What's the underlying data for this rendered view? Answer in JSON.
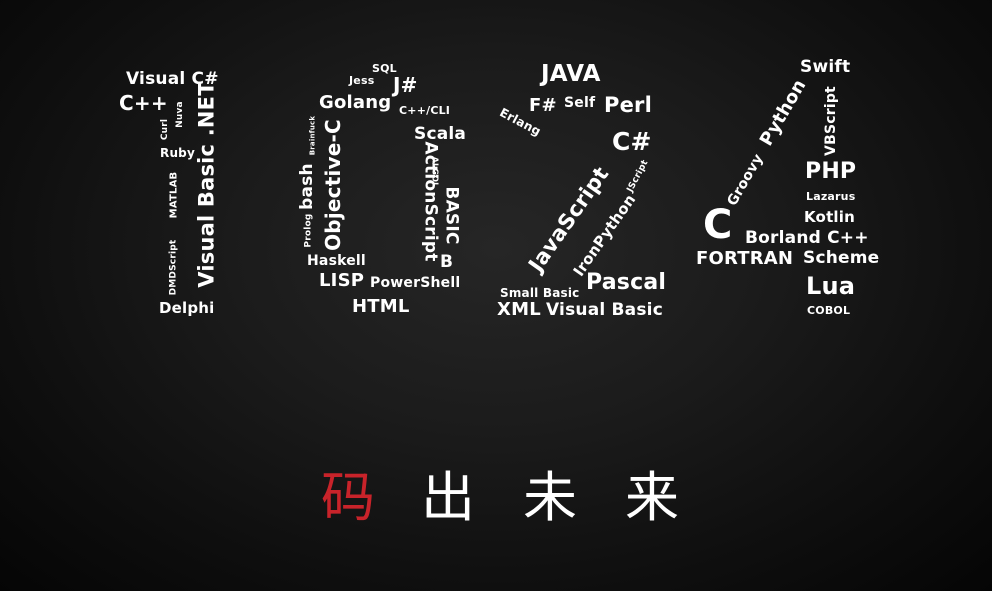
{
  "colors": {
    "text": "#ffffff",
    "accent": "#c8232a",
    "background": "#141414"
  },
  "numeral_1": {
    "visual_csharp": "Visual C#",
    "cpp": "C++",
    "curl": "Curl",
    "nuva": "Nuva",
    "ruby": "Ruby",
    "vb_net": "Visual Basic .NET",
    "matlab": "MATLAB",
    "dmdscript": "DMDScript",
    "delphi": "Delphi"
  },
  "numeral_0": {
    "sql": "SQL",
    "jess": "Jess",
    "jsharp": "J#",
    "golang": "Golang",
    "cpp_cli": "C++/CLI",
    "brainfuck": "Brainfuck",
    "objective_c": "Objective-C",
    "bash": "bash",
    "prolog": "Prolog",
    "scala": "Scala",
    "algol": "ALGOL",
    "actionscript": "ActionScript",
    "basic": "BASIC",
    "b": "B",
    "haskell": "Haskell",
    "lisp": "LISP",
    "powershell": "PowerShell",
    "html": "HTML"
  },
  "numeral_2": {
    "java": "JAVA",
    "fsharp": "F#",
    "self": "Self",
    "perl": "Perl",
    "erlang": "Erlang",
    "csharp": "C#",
    "jscript": "JScript",
    "javascript": "JavaScript",
    "ironpython": "IronPython",
    "pascal": "Pascal",
    "small_basic": "Small Basic",
    "xml": "XML",
    "visual_basic": "Visual Basic"
  },
  "numeral_4": {
    "swift": "Swift",
    "python": "Python",
    "groovy": "Groovy",
    "vbscript": "VBScript",
    "php": "PHP",
    "lazarus": "Lazarus",
    "kotlin": "Kotlin",
    "c": "C",
    "borland_cpp": "Borland C++",
    "fortran": "FORTRAN",
    "scheme": "Scheme",
    "lua": "Lua",
    "cobol": "COBOL"
  },
  "tagline": {
    "chars": [
      "码",
      "出",
      "未",
      "来"
    ],
    "highlight_index": 0
  }
}
